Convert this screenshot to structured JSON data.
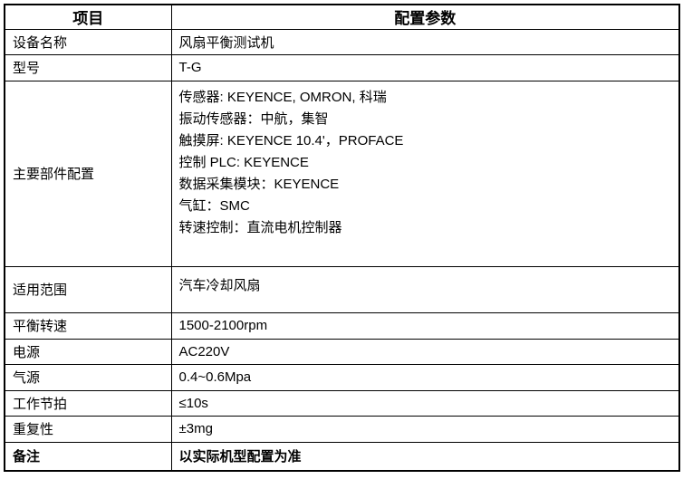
{
  "colors": {
    "background": "#ffffff",
    "border": "#000000",
    "text": "#000000"
  },
  "table": {
    "headers": {
      "item": "项目",
      "config": "配置参数"
    },
    "rows": [
      {
        "label": "设备名称",
        "value": "风扇平衡测试机"
      },
      {
        "label": "型号",
        "value": "T-G"
      },
      {
        "label": "主要部件配置",
        "lines": [
          "传感器: KEYENCE, OMRON, 科瑞",
          "振动传感器：中航，集智",
          "触摸屏: KEYENCE 10.4'，PROFACE",
          "控制 PLC: KEYENCE",
          "数据采集模块：KEYENCE",
          "气缸：SMC",
          "转速控制：直流电机控制器"
        ]
      },
      {
        "label": "适用范围",
        "value": "汽车冷却风扇"
      },
      {
        "label": "平衡转速",
        "value": "1500-2100rpm"
      },
      {
        "label": "电源",
        "value": "AC220V"
      },
      {
        "label": "气源",
        "value": "0.4~0.6Mpa"
      },
      {
        "label": "工作节拍",
        "value": "≤10s"
      },
      {
        "label": "重复性",
        "value": "±3mg"
      },
      {
        "label": "备注",
        "value": "以实际机型配置为准"
      }
    ]
  }
}
